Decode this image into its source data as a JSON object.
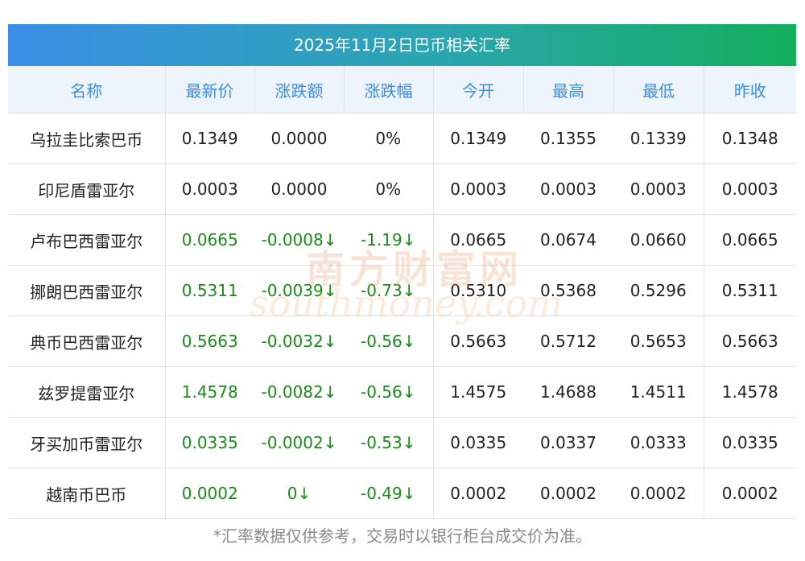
{
  "title": "2025年11月2日巴币相关汇率",
  "headers": [
    "名称",
    "最新价",
    "涨跌额",
    "涨跌幅",
    "今开",
    "最高",
    "最低",
    "昨收"
  ],
  "rows": [
    {
      "name": "乌拉圭比索巴币",
      "latest": "0.1349",
      "change": "0.0000",
      "change_pct": "0%",
      "open": "0.1349",
      "high": "0.1355",
      "low": "0.1339",
      "prev_close": "0.1348",
      "down": false
    },
    {
      "name": "印尼盾雷亚尔",
      "latest": "0.0003",
      "change": "0.0000",
      "change_pct": "0%",
      "open": "0.0003",
      "high": "0.0003",
      "low": "0.0003",
      "prev_close": "0.0003",
      "down": false
    },
    {
      "name": "卢布巴西雷亚尔",
      "latest": "0.0665",
      "change": "-0.0008↓",
      "change_pct": "-1.19↓",
      "open": "0.0665",
      "high": "0.0674",
      "low": "0.0660",
      "prev_close": "0.0665",
      "down": true
    },
    {
      "name": "挪朗巴西雷亚尔",
      "latest": "0.5311",
      "change": "-0.0039↓",
      "change_pct": "-0.73↓",
      "open": "0.5310",
      "high": "0.5368",
      "low": "0.5296",
      "prev_close": "0.5311",
      "down": true
    },
    {
      "name": "典币巴西雷亚尔",
      "latest": "0.5663",
      "change": "-0.0032↓",
      "change_pct": "-0.56↓",
      "open": "0.5663",
      "high": "0.5712",
      "low": "0.5653",
      "prev_close": "0.5663",
      "down": true
    },
    {
      "name": "兹罗提雷亚尔",
      "latest": "1.4578",
      "change": "-0.0082↓",
      "change_pct": "-0.56↓",
      "open": "1.4575",
      "high": "1.4688",
      "low": "1.4511",
      "prev_close": "1.4578",
      "down": true
    },
    {
      "name": "牙买加币雷亚尔",
      "latest": "0.0335",
      "change": "-0.0002↓",
      "change_pct": "-0.53↓",
      "open": "0.0335",
      "high": "0.0337",
      "low": "0.0333",
      "prev_close": "0.0335",
      "down": true
    },
    {
      "name": "越南币巴币",
      "latest": "0.0002",
      "change": "0↓",
      "change_pct": "-0.49↓",
      "open": "0.0002",
      "high": "0.0002",
      "low": "0.0002",
      "prev_close": "0.0002",
      "down": true
    }
  ],
  "footnote": "*汇率数据仅供参考，交易时以银行柜台成交价为准。",
  "watermark": {
    "cn": "南方财富网",
    "en": "southmoney.com"
  },
  "colors": {
    "header_text": "#3a8ee6",
    "down": "#1a8a1a",
    "title_grad_start": "#3a8ee6",
    "title_grad_end": "#14ae5c"
  }
}
